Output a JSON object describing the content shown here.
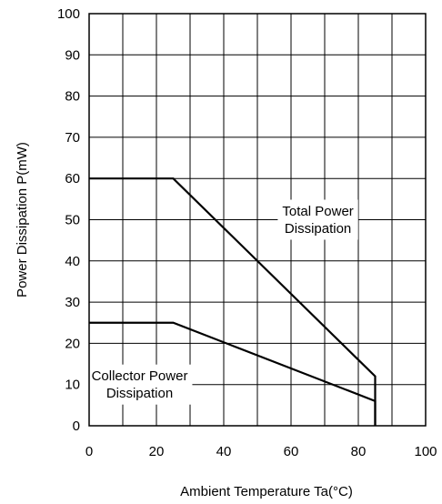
{
  "chart_data": {
    "type": "line",
    "title": "",
    "xlabel": "Ambient Temperature Ta(°C)",
    "ylabel": "Power Dissipation P(mW)",
    "xlim": [
      0,
      100
    ],
    "ylim": [
      0,
      100
    ],
    "x_ticks": [
      "0",
      "20",
      "40",
      "60",
      "80",
      "100"
    ],
    "y_ticks": [
      "0",
      "10",
      "20",
      "30",
      "40",
      "50",
      "60",
      "70",
      "80",
      "90",
      "100"
    ],
    "grid": true,
    "series": [
      {
        "name": "Total Power Dissipation",
        "x": [
          0,
          25,
          85,
          85
        ],
        "y": [
          60,
          60,
          12,
          0
        ]
      },
      {
        "name": "Collector Power Dissipation",
        "x": [
          0,
          25,
          85,
          85
        ],
        "y": [
          25,
          25,
          6,
          0
        ]
      }
    ],
    "annotations": [
      {
        "lines": [
          "Total Power",
          "Dissipation"
        ],
        "x": 68,
        "y": 50
      },
      {
        "lines": [
          "Collector Power",
          "Dissipation"
        ],
        "x": 15,
        "y": 10
      }
    ],
    "colors": {
      "line": "#000000",
      "grid": "#000000",
      "background": "#ffffff"
    }
  }
}
